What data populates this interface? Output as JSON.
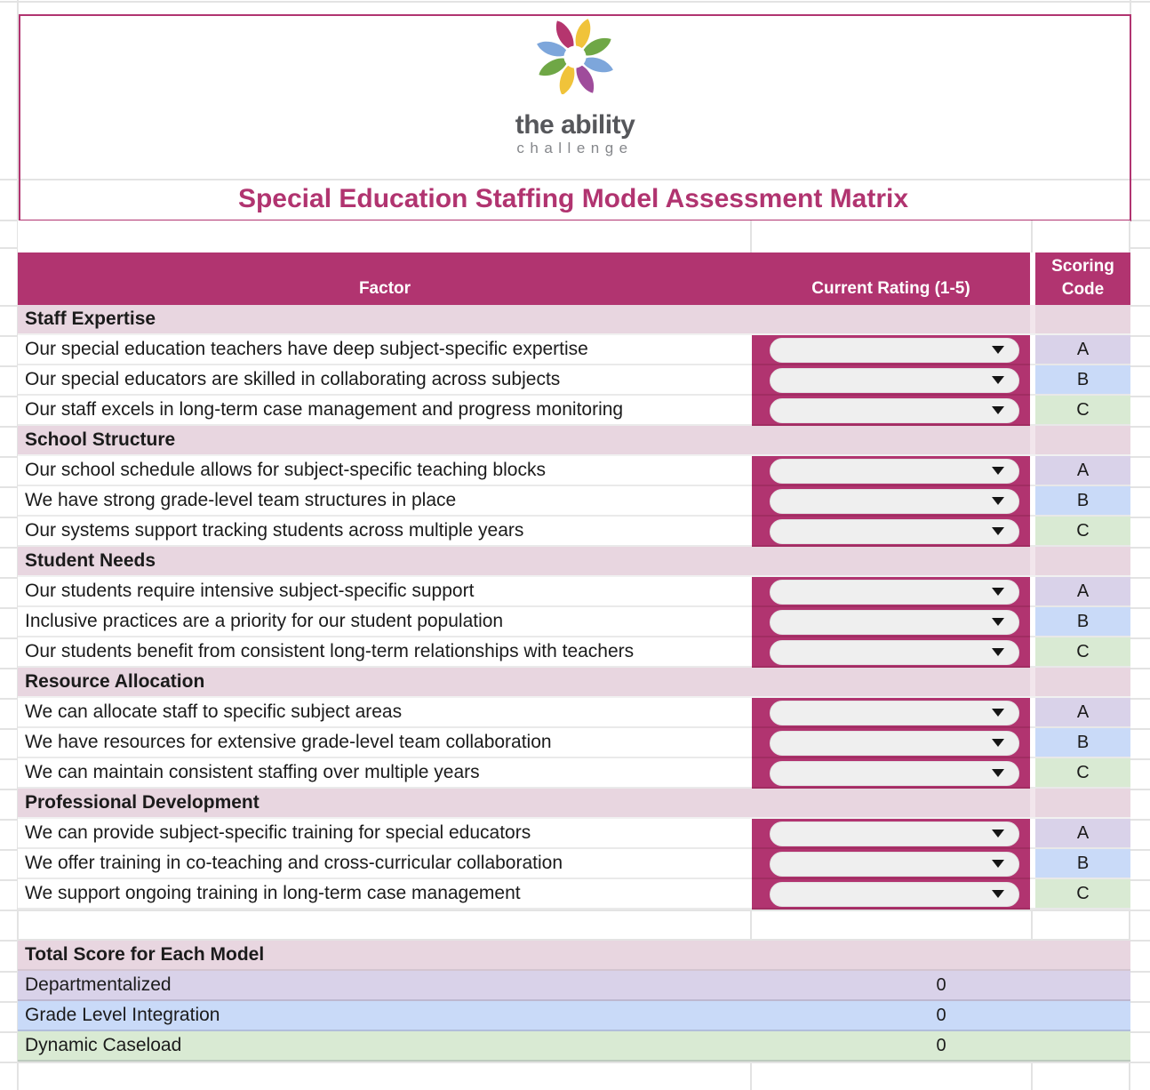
{
  "logo": {
    "line1": "the ability",
    "line2": "challenge"
  },
  "title": "Special Education Staffing Model Assessment Matrix",
  "icons": {
    "rating_dropdown_arrow": "▼",
    "logo_mark": "pinwheel-flower"
  },
  "table": {
    "headers": {
      "factor": "Factor",
      "rating": "Current Rating (1-5)",
      "scoring_line1": "Scoring",
      "scoring_line2": "Code"
    },
    "rating_dropdown_value": "",
    "sections": [
      {
        "name": "Staff Expertise",
        "items": [
          {
            "factor": "Our special education teachers have deep subject-specific expertise",
            "code": "A"
          },
          {
            "factor": "Our special educators are skilled in collaborating across subjects",
            "code": "B"
          },
          {
            "factor": "Our staff excels in long-term case management and progress monitoring",
            "code": "C"
          }
        ]
      },
      {
        "name": "School Structure",
        "items": [
          {
            "factor": "Our school schedule allows for subject-specific teaching blocks",
            "code": "A"
          },
          {
            "factor": "We have strong grade-level team structures in place",
            "code": "B"
          },
          {
            "factor": "Our systems support tracking students across multiple years",
            "code": "C"
          }
        ]
      },
      {
        "name": "Student Needs",
        "items": [
          {
            "factor": "Our students require intensive subject-specific support",
            "code": "A"
          },
          {
            "factor": "Inclusive practices are a priority for our student population",
            "code": "B"
          },
          {
            "factor": "Our students benefit from consistent long-term relationships with teachers",
            "code": "C"
          }
        ]
      },
      {
        "name": "Resource Allocation",
        "items": [
          {
            "factor": "We can allocate staff to specific subject areas",
            "code": "A"
          },
          {
            "factor": "We have resources for extensive grade-level team collaboration",
            "code": "B"
          },
          {
            "factor": "We can maintain consistent staffing over multiple years",
            "code": "C"
          }
        ]
      },
      {
        "name": "Professional Development",
        "items": [
          {
            "factor": "We can provide subject-specific training for special educators",
            "code": "A"
          },
          {
            "factor": "We offer training in co-teaching and cross-curricular collaboration",
            "code": "B"
          },
          {
            "factor": "We support ongoing training in long-term case management",
            "code": "C"
          }
        ]
      }
    ],
    "totals": {
      "header": "Total Score for Each Model",
      "rows": [
        {
          "label": "Departmentalized",
          "value": "0",
          "color": "#D9D2E9"
        },
        {
          "label": "Grade Level Integration",
          "value": "0",
          "color": "#C9DAF8"
        },
        {
          "label": "Dynamic Caseload",
          "value": "0",
          "color": "#D9EAD3"
        }
      ]
    }
  },
  "colors": {
    "accent": "#B13470",
    "sectionBg": "#E8D6E0",
    "pill": "#EFEFEF",
    "codeA": "#D9D2E9",
    "codeB": "#C9DAF8",
    "codeC": "#D9EAD3",
    "gridline": "#E3E3E3",
    "brandGray": "#56575B",
    "logoPetals": [
      "#B5356E",
      "#F0C33A",
      "#6FA746",
      "#7DA6DB",
      "#9F4C9B",
      "#F0C33A",
      "#6FA746",
      "#7DA6DB"
    ]
  }
}
